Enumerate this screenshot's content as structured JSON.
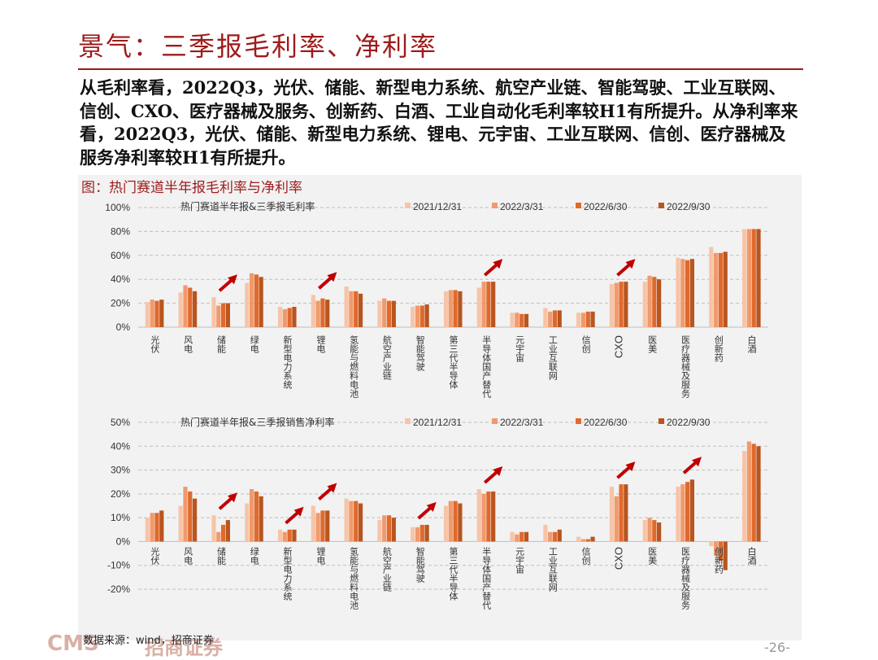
{
  "slide": {
    "title": "景气：三季报毛利率、净利率",
    "summary": "从毛利率看，2022Q3，光伏、储能、新型电力系统、航空产业链、智能驾驶、工业互联网、信创、CXO、医疗器械及服务、创新药、白酒、工业自动化毛利率较H1有所提升。从净利率来看，2022Q3，光伏、储能、新型电力系统、锂电、元宇宙、工业互联网、信创、医疗器械及服务净利率较H1有所提升。",
    "figure_caption": "图：热门赛道半年报毛利率与净利率",
    "source": "数据来源：wind，招商证券",
    "logo_text": "CMS",
    "logo_cn": "招商证券",
    "page_number": "-26-"
  },
  "colors": {
    "title_red": "#9e1b1b",
    "arrow_red": "#c00000",
    "series": [
      "#f7c4a8",
      "#f09a6b",
      "#e0692c",
      "#b9551f"
    ]
  },
  "chart_data": [
    {
      "type": "bar",
      "title": "热门赛道半年报&三季报毛利率",
      "series_names": [
        "2021/12/31",
        "2022/3/31",
        "2022/6/30",
        "2022/9/30"
      ],
      "ylim": [
        0,
        100
      ],
      "yticks": [
        "0%",
        "20%",
        "40%",
        "60%",
        "80%",
        "100%"
      ],
      "ytick_values": [
        0,
        20,
        40,
        60,
        80,
        100
      ],
      "grid": true,
      "legend": "top",
      "categories": [
        "光伏",
        "风电",
        "储能",
        "绿电",
        "新型电力系统",
        "锂电",
        "氢能与燃料电池",
        "航空产业链",
        "智能驾驶",
        "第三代半导体",
        "半导体国产替代",
        "元宇宙",
        "工业互联网",
        "信创",
        "CXO",
        "医美",
        "医疗器械及服务",
        "创新药",
        "白酒"
      ],
      "values": [
        [
          21,
          23,
          22,
          23
        ],
        [
          29,
          35,
          33,
          30
        ],
        [
          25,
          18,
          20,
          20
        ],
        [
          37,
          45,
          44,
          42
        ],
        [
          17,
          15,
          16,
          17
        ],
        [
          27,
          22,
          24,
          23
        ],
        [
          34,
          30,
          30,
          28
        ],
        [
          22,
          24,
          22,
          22
        ],
        [
          17,
          18,
          18,
          19
        ],
        [
          30,
          31,
          31,
          30
        ],
        [
          33,
          38,
          38,
          38
        ],
        [
          12,
          12,
          11,
          11
        ],
        [
          16,
          13,
          14,
          14
        ],
        [
          12,
          12,
          13,
          13
        ],
        [
          36,
          37,
          38,
          38
        ],
        [
          38,
          43,
          42,
          40
        ],
        [
          58,
          57,
          56,
          57
        ],
        [
          67,
          62,
          62,
          63
        ],
        [
          82,
          82,
          82,
          82
        ]
      ],
      "arrow_categories": [
        2,
        5,
        10,
        14
      ]
    },
    {
      "type": "bar",
      "title": "热门赛道半年报&三季报销售净利率",
      "series_names": [
        "2021/12/31",
        "2022/3/31",
        "2022/6/30",
        "2022/9/30"
      ],
      "ylim": [
        -20,
        50
      ],
      "yticks": [
        "-20%",
        "-10%",
        "0%",
        "10%",
        "20%",
        "30%",
        "40%",
        "50%"
      ],
      "ytick_values": [
        -20,
        -10,
        0,
        10,
        20,
        30,
        40,
        50
      ],
      "grid": true,
      "legend": "top",
      "categories": [
        "光伏",
        "风电",
        "储能",
        "绿电",
        "新型电力系统",
        "锂电",
        "氢能与燃料电池",
        "航空产业链",
        "智能驾驶",
        "第三代半导体",
        "半导体国产替代",
        "元宇宙",
        "工业互联网",
        "信创",
        "CXO",
        "医美",
        "医疗器械及服务",
        "创新药",
        "白酒"
      ],
      "values": [
        [
          10,
          12,
          12,
          13
        ],
        [
          15,
          23,
          21,
          18
        ],
        [
          11,
          4,
          7,
          9
        ],
        [
          16,
          22,
          21,
          19
        ],
        [
          5,
          4,
          5,
          5
        ],
        [
          15,
          12,
          13,
          13
        ],
        [
          18,
          17,
          17,
          16
        ],
        [
          9,
          11,
          11,
          10
        ],
        [
          6,
          6,
          7,
          7
        ],
        [
          15,
          17,
          17,
          16
        ],
        [
          22,
          20,
          21,
          21
        ],
        [
          4,
          3,
          4,
          4
        ],
        [
          7,
          4,
          4,
          5
        ],
        [
          2,
          1,
          1,
          2
        ],
        [
          23,
          19,
          24,
          24
        ],
        [
          9,
          10,
          9,
          8
        ],
        [
          23,
          24,
          25,
          26
        ],
        [
          -2,
          -6,
          -8,
          -12
        ],
        [
          38,
          42,
          41,
          40
        ]
      ],
      "arrow_categories": [
        2,
        4,
        5,
        8,
        10,
        14,
        16
      ]
    }
  ]
}
